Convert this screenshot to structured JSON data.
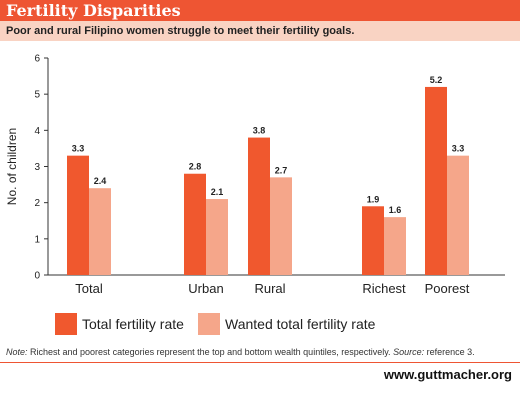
{
  "header": {
    "title": "Fertility Disparities",
    "subtitle": "Poor and rural Filipino women struggle to meet their fertility goals."
  },
  "colors": {
    "accent": "#ee5533",
    "subtitle_bg": "#f9d3c3",
    "series_total": "#f0582e",
    "series_wanted": "#f5a68a"
  },
  "chart_data": {
    "type": "bar",
    "categories": [
      "Total",
      "Urban",
      "Rural",
      "Richest",
      "Poorest"
    ],
    "series": [
      {
        "name": "Total fertility rate",
        "values": [
          3.3,
          2.8,
          3.8,
          1.9,
          5.2
        ]
      },
      {
        "name": "Wanted total fertility rate",
        "values": [
          2.4,
          2.1,
          2.7,
          1.6,
          3.3
        ]
      }
    ],
    "value_labels": [
      [
        "3.3",
        "2.8",
        "3.8",
        "1.9",
        "5.2"
      ],
      [
        "2.4",
        "2.1",
        "2.7",
        "1.6",
        "3.3"
      ]
    ],
    "ylabel": "No. of children",
    "ylim": [
      0,
      6
    ],
    "yticks": [
      "0",
      "1",
      "2",
      "3",
      "4",
      "5",
      "6"
    ],
    "grid": false,
    "legend_position": "bottom"
  },
  "footnote": {
    "note_label": "Note:",
    "note_text": " Richest and poorest categories represent the top and bottom wealth quintiles, respectively. ",
    "source_label": "Source:",
    "source_text": " reference 3."
  },
  "brand": "www.guttmacher.org"
}
